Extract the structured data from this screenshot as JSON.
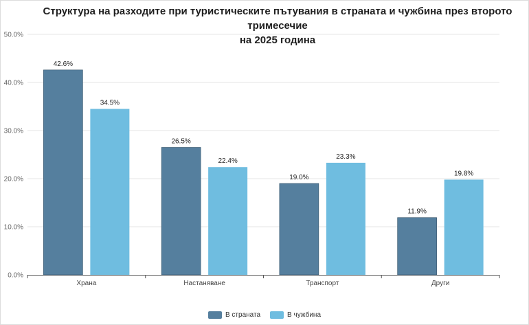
{
  "chart_data": {
    "type": "bar",
    "title_line1": "Структура на разходите при туристическите пътувания в страната и чужбина през второто тримесечие",
    "title_line2": "на 2025 година",
    "categories": [
      "Храна",
      "Настаняване",
      "Транспорт",
      "Други"
    ],
    "series": [
      {
        "name": "В страната",
        "values": [
          42.6,
          26.5,
          19.0,
          11.9
        ],
        "labels": [
          "42.6%",
          "26.5%",
          "19.0%",
          "11.9%"
        ],
        "color": "#557f9e"
      },
      {
        "name": "В чужбина",
        "values": [
          34.5,
          22.4,
          23.3,
          19.8
        ],
        "labels": [
          "34.5%",
          "22.4%",
          "23.3%",
          "19.8%"
        ],
        "color": "#6fbde0"
      }
    ],
    "ylim": [
      0,
      50
    ],
    "yticks": [
      0,
      10,
      20,
      30,
      40,
      50
    ],
    "ytick_labels": [
      "0.0%",
      "10.0%",
      "20.0%",
      "30.0%",
      "40.0%",
      "50.0%"
    ],
    "grid": true,
    "legend_position": "bottom"
  }
}
